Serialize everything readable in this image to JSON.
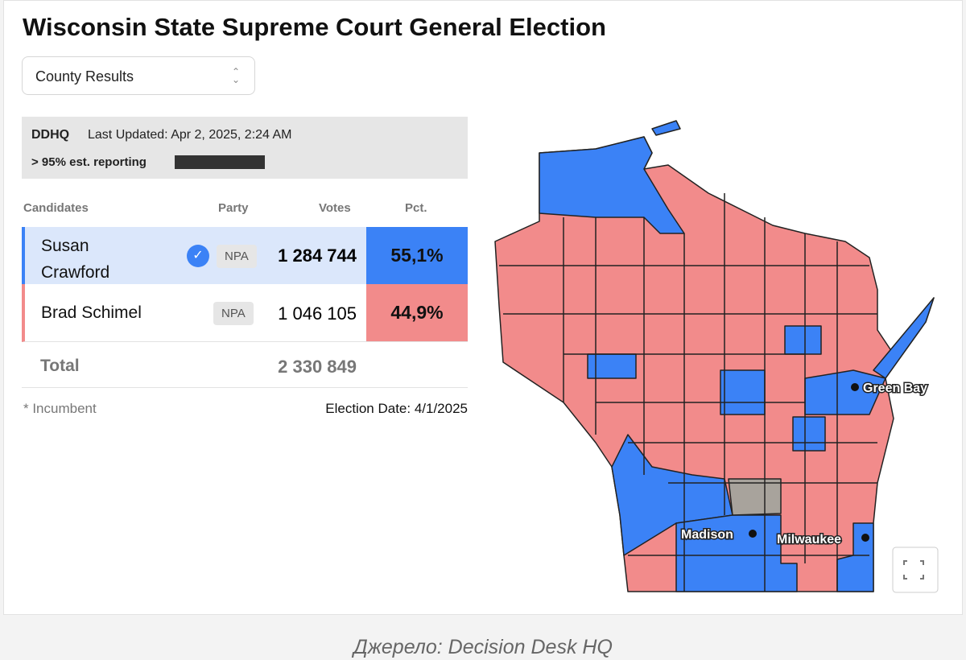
{
  "header": {
    "title": "Wisconsin State Supreme Court General Election"
  },
  "dropdown": {
    "selected": "County Results"
  },
  "status": {
    "logo": "DDHQ",
    "last_updated": "Last Updated: Apr 2, 2025, 2:24 AM",
    "reporting": "> 95% est. reporting"
  },
  "table": {
    "columns": [
      "Candidates",
      "Party",
      "Votes",
      "Pct."
    ],
    "rows": [
      [
        "Susan Crawford",
        "NPA",
        "1 284 744",
        "55,1%"
      ],
      [
        "Brad Schimel",
        "NPA",
        "1 046 105",
        "44,9%"
      ]
    ],
    "total": {
      "label": "Total",
      "votes": "2 330 849"
    }
  },
  "footer": {
    "note": "* Incumbent",
    "election_date": "Election Date: 4/1/2025"
  },
  "map": {
    "cities": [
      "Green Bay",
      "Madison",
      "Milwaukee"
    ]
  },
  "caption": "Джерело: Decision Desk HQ"
}
